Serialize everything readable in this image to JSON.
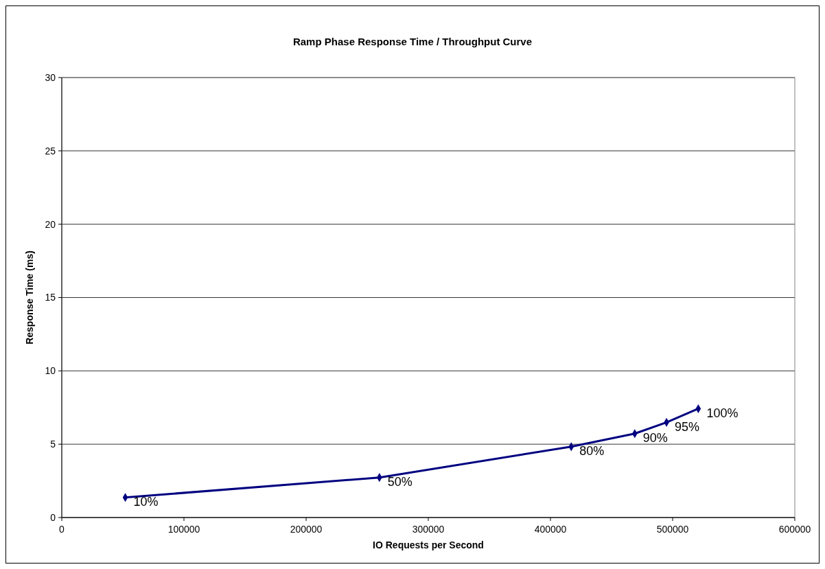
{
  "chart_data": {
    "type": "line",
    "title": "Ramp Phase Response Time / Throughput Curve",
    "xlabel": "IO Requests per Second",
    "ylabel": "Response Time (ms)",
    "x": [
      52000,
      260000,
      417000,
      469000,
      495000,
      521000
    ],
    "series": [
      {
        "color": "#000080",
        "values": [
          1.37,
          2.73,
          4.83,
          5.72,
          6.49,
          7.42
        ]
      }
    ],
    "annotations": [
      {
        "text": "10%",
        "x": 52000,
        "y": 1.37
      },
      {
        "text": "50%",
        "x": 260000,
        "y": 2.73
      },
      {
        "text": "80%",
        "x": 417000,
        "y": 4.83
      },
      {
        "text": "90%",
        "x": 469000,
        "y": 5.72
      },
      {
        "text": "95%",
        "x": 495000,
        "y": 6.49
      },
      {
        "text": "100%",
        "x": 521000,
        "y": 7.42
      }
    ],
    "xlim": [
      0,
      600000
    ],
    "xticks": [
      0,
      100000,
      200000,
      300000,
      400000,
      500000,
      600000
    ],
    "ylim": [
      0,
      30
    ],
    "yticks": [
      0,
      5,
      10,
      15,
      20,
      25,
      30
    ],
    "grid": "y",
    "marker": "diamond",
    "line_style": "solid"
  }
}
